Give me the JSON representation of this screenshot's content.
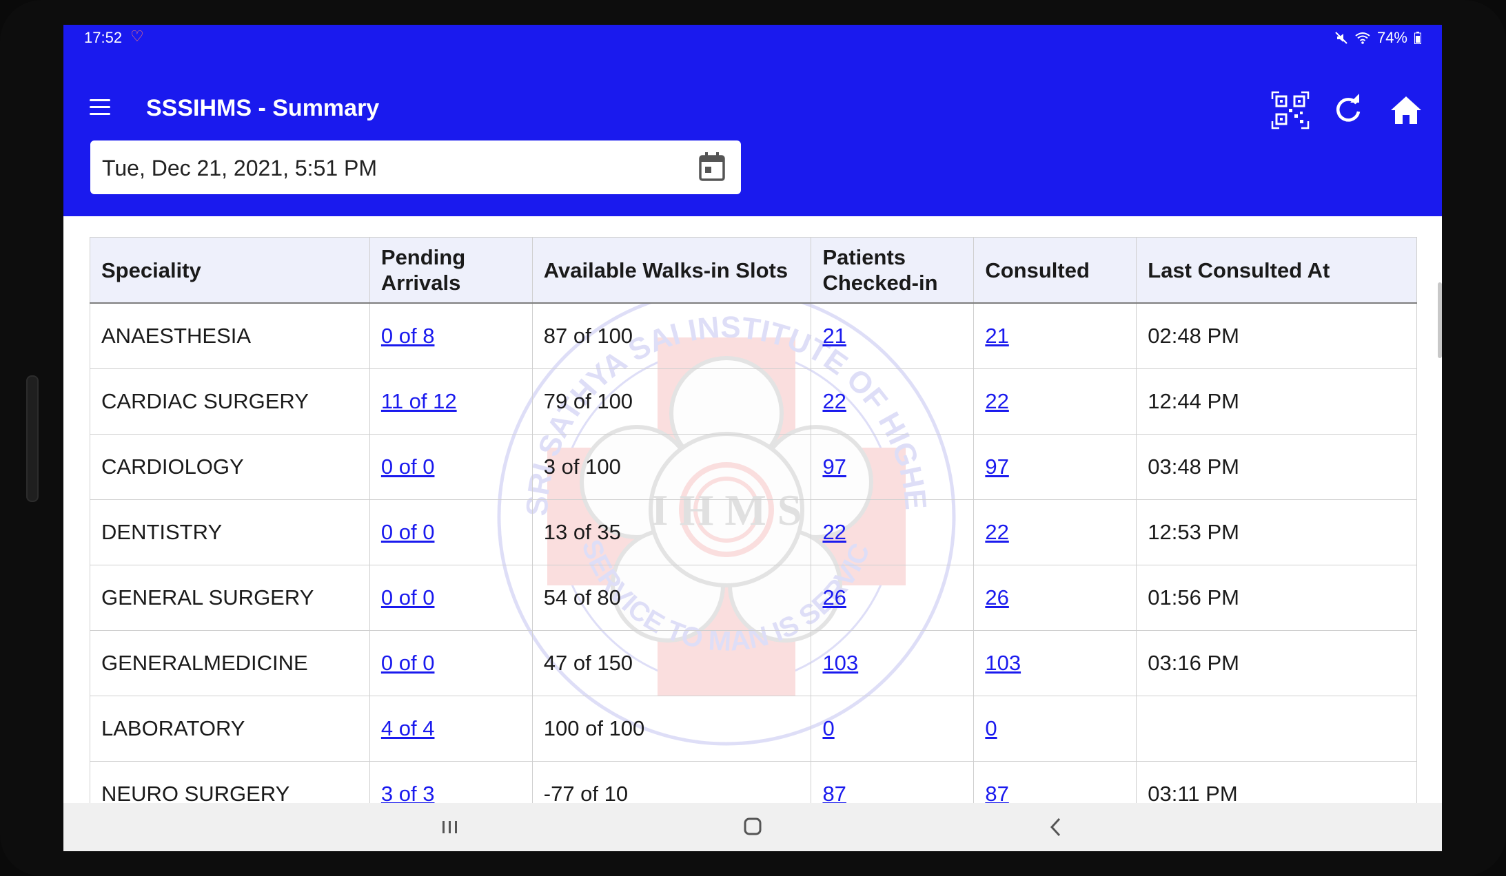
{
  "status_bar": {
    "time": "17:52",
    "battery": "74%"
  },
  "app_bar": {
    "title": "SSSIHMS - Summary"
  },
  "date_field": {
    "value": "Tue, Dec 21, 2021, 5:51 PM"
  },
  "table": {
    "headers": [
      "Speciality",
      "Pending Arrivals",
      "Available Walks-in Slots",
      "Patients Checked-in",
      "Consulted",
      "Last Consulted At"
    ],
    "rows": [
      {
        "speciality": "ANAESTHESIA",
        "pending": "0 of 8",
        "slots": "87 of 100",
        "checked_in": "21",
        "consulted": "21",
        "last_at": "02:48 PM"
      },
      {
        "speciality": "CARDIAC SURGERY",
        "pending": "11 of 12",
        "slots": "79 of 100",
        "checked_in": "22",
        "consulted": "22",
        "last_at": "12:44 PM"
      },
      {
        "speciality": "CARDIOLOGY",
        "pending": "0 of 0",
        "slots": "3 of 100",
        "checked_in": "97",
        "consulted": "97",
        "last_at": "03:48 PM"
      },
      {
        "speciality": "DENTISTRY",
        "pending": "0 of 0",
        "slots": "13 of 35",
        "checked_in": "22",
        "consulted": "22",
        "last_at": "12:53 PM"
      },
      {
        "speciality": "GENERAL SURGERY",
        "pending": "0 of 0",
        "slots": "54 of 80",
        "checked_in": "26",
        "consulted": "26",
        "last_at": "01:56 PM"
      },
      {
        "speciality": "GENERALMEDICINE",
        "pending": "0 of 0",
        "slots": "47 of 150",
        "checked_in": "103",
        "consulted": "103",
        "last_at": "03:16 PM"
      },
      {
        "speciality": "LABORATORY",
        "pending": "4 of 4",
        "slots": "100 of 100",
        "checked_in": "0",
        "consulted": "0",
        "last_at": ""
      },
      {
        "speciality": "NEURO SURGERY",
        "pending": "3 of 3",
        "slots": "-77 of 10",
        "checked_in": "87",
        "consulted": "87",
        "last_at": "03:11 PM"
      }
    ]
  },
  "watermark": {
    "ring_text": "SRI SATHYA SAI INSTITUTE OF HIGHER MEDICAL SCIENCES",
    "motto": "SERVICE TO MAN IS SERVICE TO GOD",
    "center": "I H M S"
  },
  "colors": {
    "primary": "#1a1aee",
    "link": "#1a1aee",
    "header_bg": "#eef0fb"
  },
  "icons": [
    "menu-icon",
    "qr-scan-icon",
    "refresh-icon",
    "home-icon",
    "calendar-icon",
    "mute-icon",
    "wifi-icon",
    "battery-icon",
    "recents-icon",
    "home-nav-icon",
    "back-icon"
  ]
}
